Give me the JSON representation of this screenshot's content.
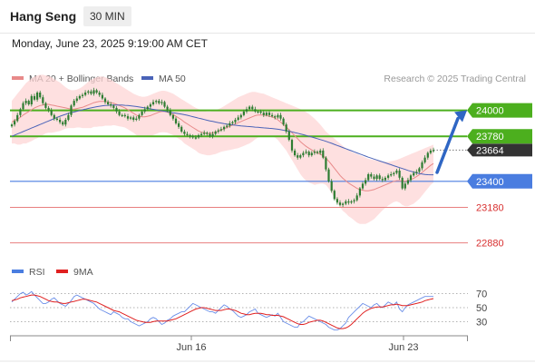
{
  "header": {
    "title": "Hang Seng",
    "timeframe": "30 MIN",
    "datetime": "Monday, June 23, 2025 9:19:00 AM CET"
  },
  "legend": {
    "ma20": "MA 20 + Bollinger Bands",
    "ma50": "MA 50",
    "credit": "Research © 2025 Trading Central",
    "rsi": "RSI",
    "rsi_ma": "9MA"
  },
  "colors": {
    "green": "#4caf1e",
    "blue": "#4a7de0",
    "red": "#e87f7f",
    "candle": "#2e7d32",
    "ma50": "#4a63b8",
    "ma20": "#e88a8a",
    "band": "#fdd6d6",
    "current": "#333333",
    "arrow": "#2f66c4"
  },
  "chart_data": [
    {
      "type": "candlestick",
      "ylim": [
        22800,
        24150
      ],
      "xticks": [
        "Jun 16",
        "Jun 23"
      ],
      "current_price": "23664",
      "levels": [
        {
          "label": "24000",
          "value": 24000,
          "kind": "resistance-target",
          "color": "#4caf1e"
        },
        {
          "label": "23780",
          "value": 23780,
          "kind": "resistance",
          "color": "#4caf1e"
        },
        {
          "label": "23400",
          "value": 23400,
          "kind": "pivot",
          "color": "#4a7de0"
        },
        {
          "label": "23180",
          "value": 23180,
          "kind": "support",
          "color": "#e87f7f"
        },
        {
          "label": "22880",
          "value": 22880,
          "kind": "support",
          "color": "#e87f7f"
        }
      ],
      "close": [
        23880,
        23910,
        23960,
        24010,
        24060,
        24080,
        24050,
        24120,
        24090,
        24150,
        24110,
        24060,
        24020,
        24000,
        23960,
        23930,
        23920,
        23900,
        23880,
        23920,
        23960,
        24040,
        24080,
        24100,
        24120,
        24130,
        24150,
        24160,
        24140,
        24170,
        24150,
        24130,
        24100,
        24070,
        24050,
        24040,
        24020,
        23990,
        23960,
        23960,
        23950,
        23930,
        23940,
        23920,
        23930,
        23960,
        23990,
        24010,
        24030,
        24050,
        24070,
        24080,
        24060,
        24070,
        24030,
        24000,
        23960,
        23930,
        23890,
        23860,
        23820,
        23800,
        23790,
        23780,
        23770,
        23770,
        23790,
        23800,
        23810,
        23800,
        23780,
        23800,
        23820,
        23830,
        23840,
        23860,
        23870,
        23890,
        23900,
        23920,
        23940,
        23960,
        23990,
        24010,
        24030,
        24010,
        23990,
        23990,
        23980,
        23960,
        23980,
        23960,
        23950,
        23940,
        23960,
        23930,
        23880,
        23820,
        23750,
        23660,
        23620,
        23600,
        23620,
        23640,
        23650,
        23620,
        23640,
        23650,
        23640,
        23660,
        23600,
        23500,
        23400,
        23320,
        23250,
        23220,
        23200,
        23210,
        23230,
        23220,
        23230,
        23240,
        23280,
        23340,
        23380,
        23410,
        23460,
        23440,
        23420,
        23450,
        23420,
        23410,
        23430,
        23450,
        23460,
        23470,
        23490,
        23430,
        23340,
        23380,
        23410,
        23450,
        23470,
        23480,
        23510,
        23560,
        23600,
        23640,
        23660,
        23664
      ],
      "ma20": [
        23900,
        23915,
        23925,
        23940,
        23960,
        23975,
        23990,
        24005,
        24020,
        24030,
        24040,
        24045,
        24050,
        24050,
        24045,
        24040,
        24035,
        24030,
        24025,
        24020,
        24015,
        24010,
        24010,
        24015,
        24020,
        24025,
        24035,
        24045,
        24055,
        24065,
        24070,
        24075,
        24075,
        24075,
        24070,
        24065,
        24060,
        24050,
        24040,
        24030,
        24020,
        24005,
        23990,
        23975,
        23960,
        23950,
        23945,
        23945,
        23950,
        23955,
        23965,
        23975,
        23985,
        23990,
        23990,
        23985,
        23975,
        23965,
        23950,
        23935,
        23920,
        23900,
        23885,
        23870,
        23855,
        23840,
        23825,
        23815,
        23810,
        23805,
        23805,
        23810,
        23815,
        23825,
        23835,
        23845,
        23855,
        23865,
        23875,
        23885,
        23895,
        23905,
        23915,
        23925,
        23935,
        23945,
        23955,
        23960,
        23960,
        23960,
        23955,
        23950,
        23945,
        23935,
        23920,
        23900,
        23880,
        23860,
        23835,
        23810,
        23785,
        23760,
        23735,
        23715,
        23695,
        23680,
        23665,
        23650,
        23640,
        23630,
        23615,
        23595,
        23570,
        23540,
        23510,
        23480,
        23450,
        23425,
        23405,
        23385,
        23370,
        23355,
        23340,
        23330,
        23325,
        23320,
        23320,
        23325,
        23330,
        23340,
        23350,
        23360,
        23370,
        23380,
        23390,
        23400,
        23405,
        23405,
        23400,
        23400,
        23405,
        23415,
        23425,
        23440,
        23455,
        23475,
        23495,
        23515,
        23535,
        23550
      ],
      "bb_upper": [
        24080,
        24110,
        24140,
        24170,
        24200,
        24230,
        24250,
        24270,
        24285,
        24295,
        24300,
        24300,
        24295,
        24290,
        24280,
        24265,
        24250,
        24235,
        24215,
        24195,
        24180,
        24170,
        24170,
        24175,
        24185,
        24200,
        24220,
        24240,
        24260,
        24270,
        24280,
        24285,
        24285,
        24280,
        24270,
        24260,
        24245,
        24230,
        24215,
        24200,
        24185,
        24170,
        24155,
        24140,
        24130,
        24120,
        24115,
        24115,
        24120,
        24130,
        24140,
        24150,
        24160,
        24165,
        24165,
        24160,
        24150,
        24140,
        24125,
        24110,
        24095,
        24080,
        24065,
        24050,
        24035,
        24020,
        24010,
        24000,
        23995,
        23990,
        23990,
        23995,
        24000,
        24010,
        24020,
        24035,
        24050,
        24065,
        24080,
        24095,
        24110,
        24120,
        24130,
        24140,
        24150,
        24155,
        24155,
        24150,
        24145,
        24140,
        24130,
        24120,
        24110,
        24100,
        24090,
        24080,
        24070,
        24060,
        24050,
        24040,
        24030,
        24020,
        24010,
        24000,
        23985,
        23970,
        23950,
        23930,
        23905,
        23880,
        23850,
        23820,
        23800,
        23780,
        23760,
        23740,
        23720,
        23700,
        23680,
        23665,
        23650,
        23640,
        23630,
        23620,
        23610,
        23600,
        23590,
        23585,
        23580,
        23575,
        23570,
        23565,
        23565,
        23565,
        23570,
        23575,
        23580,
        23590,
        23600,
        23610,
        23620,
        23630,
        23640,
        23650,
        23660,
        23670,
        23680,
        23690,
        23700,
        23710
      ],
      "bb_lower": [
        23720,
        23720,
        23710,
        23710,
        23720,
        23720,
        23730,
        23740,
        23755,
        23765,
        23780,
        23790,
        23805,
        23810,
        23810,
        23815,
        23820,
        23825,
        23835,
        23845,
        23850,
        23850,
        23850,
        23855,
        23855,
        23850,
        23850,
        23850,
        23850,
        23860,
        23860,
        23865,
        23865,
        23870,
        23870,
        23870,
        23875,
        23870,
        23865,
        23860,
        23855,
        23840,
        23825,
        23810,
        23790,
        23780,
        23775,
        23775,
        23780,
        23780,
        23790,
        23800,
        23810,
        23815,
        23815,
        23810,
        23800,
        23790,
        23775,
        23760,
        23745,
        23720,
        23705,
        23690,
        23675,
        23660,
        23640,
        23630,
        23625,
        23620,
        23620,
        23625,
        23630,
        23640,
        23650,
        23655,
        23660,
        23665,
        23670,
        23675,
        23680,
        23690,
        23700,
        23710,
        23720,
        23735,
        23755,
        23770,
        23775,
        23780,
        23780,
        23780,
        23780,
        23770,
        23750,
        23720,
        23690,
        23660,
        23620,
        23580,
        23540,
        23500,
        23460,
        23430,
        23405,
        23390,
        23380,
        23370,
        23375,
        23380,
        23380,
        23370,
        23340,
        23300,
        23260,
        23220,
        23180,
        23150,
        23130,
        23105,
        23090,
        23070,
        23050,
        23040,
        23040,
        23040,
        23050,
        23065,
        23080,
        23105,
        23130,
        23155,
        23175,
        23195,
        23210,
        23225,
        23230,
        23220,
        23200,
        23190,
        23190,
        23200,
        23210,
        23230,
        23250,
        23280,
        23310,
        23340,
        23370,
        23390
      ],
      "ma50": [
        23780,
        23790,
        23800,
        23810,
        23820,
        23830,
        23840,
        23850,
        23860,
        23870,
        23880,
        23890,
        23900,
        23910,
        23920,
        23930,
        23940,
        23950,
        23958,
        23966,
        23974,
        23980,
        23986,
        23992,
        23998,
        24004,
        24010,
        24016,
        24020,
        24026,
        24030,
        24034,
        24038,
        24040,
        24042,
        24044,
        24045,
        24045,
        24045,
        24044,
        24042,
        24040,
        24038,
        24035,
        24032,
        24028,
        24024,
        24020,
        24016,
        24012,
        24008,
        24004,
        24000,
        23996,
        23992,
        23988,
        23984,
        23980,
        23976,
        23972,
        23968,
        23963,
        23958,
        23952,
        23946,
        23940,
        23934,
        23928,
        23922,
        23916,
        23911,
        23906,
        23901,
        23896,
        23892,
        23888,
        23884,
        23880,
        23877,
        23874,
        23871,
        23868,
        23866,
        23864,
        23862,
        23860,
        23858,
        23856,
        23854,
        23852,
        23850,
        23848,
        23846,
        23843,
        23840,
        23836,
        23832,
        23828,
        23823,
        23818,
        23812,
        23806,
        23800,
        23794,
        23788,
        23781,
        23774,
        23767,
        23760,
        23753,
        23746,
        23738,
        23730,
        23721,
        23712,
        23703,
        23694,
        23685,
        23676,
        23667,
        23658,
        23649,
        23640,
        23631,
        23622,
        23613,
        23604,
        23596,
        23588,
        23580,
        23572,
        23564,
        23556,
        23548,
        23540,
        23532,
        23524,
        23516,
        23508,
        23500,
        23492,
        23485,
        23478,
        23472,
        23466,
        23462,
        23458,
        23456,
        23455,
        23455
      ]
    },
    {
      "type": "line",
      "name": "RSI",
      "ylim": [
        15,
        85
      ],
      "yticks": [
        70,
        50,
        30
      ],
      "rsi": [
        58,
        62,
        66,
        70,
        72,
        68,
        70,
        73,
        68,
        64,
        60,
        56,
        56,
        58,
        62,
        64,
        60,
        56,
        54,
        52,
        56,
        60,
        66,
        68,
        66,
        64,
        62,
        60,
        58,
        56,
        52,
        48,
        46,
        44,
        42,
        40,
        44,
        42,
        40,
        36,
        34,
        34,
        30,
        28,
        26,
        24,
        26,
        28,
        30,
        34,
        36,
        34,
        30,
        26,
        28,
        32,
        34,
        38,
        40,
        42,
        44,
        44,
        48,
        52,
        56,
        54,
        52,
        50,
        48,
        46,
        44,
        44,
        42,
        46,
        50,
        54,
        52,
        48,
        46,
        42,
        38,
        36,
        38,
        40,
        44,
        46,
        48,
        42,
        40,
        38,
        36,
        38,
        40,
        38,
        42,
        36,
        30,
        28,
        26,
        24,
        22,
        22,
        28,
        30,
        34,
        38,
        36,
        34,
        32,
        30,
        28,
        26,
        22,
        20,
        18,
        18,
        20,
        24,
        28,
        36,
        40,
        44,
        48,
        52,
        56,
        54,
        52,
        50,
        54,
        56,
        52,
        50,
        54,
        58,
        56,
        54,
        58,
        48,
        44,
        50,
        54,
        56,
        58,
        60,
        62,
        64,
        66,
        66,
        66,
        66
      ],
      "ma9": [
        60,
        61,
        62,
        64,
        65,
        66,
        67,
        68,
        68,
        67,
        66,
        64,
        62,
        60,
        59,
        58,
        58,
        57,
        56,
        56,
        57,
        58,
        59,
        60,
        61,
        62,
        62,
        61,
        60,
        59,
        58,
        56,
        54,
        52,
        50,
        48,
        46,
        45,
        44,
        42,
        40,
        38,
        36,
        34,
        32,
        31,
        30,
        29,
        29,
        29,
        30,
        31,
        31,
        31,
        31,
        31,
        32,
        33,
        34,
        36,
        38,
        40,
        42,
        44,
        46,
        48,
        49,
        50,
        50,
        49,
        48,
        47,
        46,
        46,
        46,
        47,
        48,
        48,
        47,
        46,
        44,
        42,
        41,
        40,
        40,
        41,
        42,
        42,
        42,
        41,
        40,
        40,
        39,
        39,
        39,
        38,
        37,
        35,
        33,
        31,
        29,
        27,
        26,
        26,
        27,
        29,
        30,
        31,
        32,
        32,
        31,
        29,
        27,
        25,
        23,
        21,
        20,
        20,
        21,
        23,
        26,
        30,
        34,
        38,
        42,
        45,
        47,
        49,
        50,
        51,
        51,
        51,
        52,
        53,
        54,
        54,
        55,
        54,
        53,
        53,
        53,
        54,
        55,
        56,
        57,
        58,
        60,
        61,
        62,
        63
      ]
    }
  ]
}
